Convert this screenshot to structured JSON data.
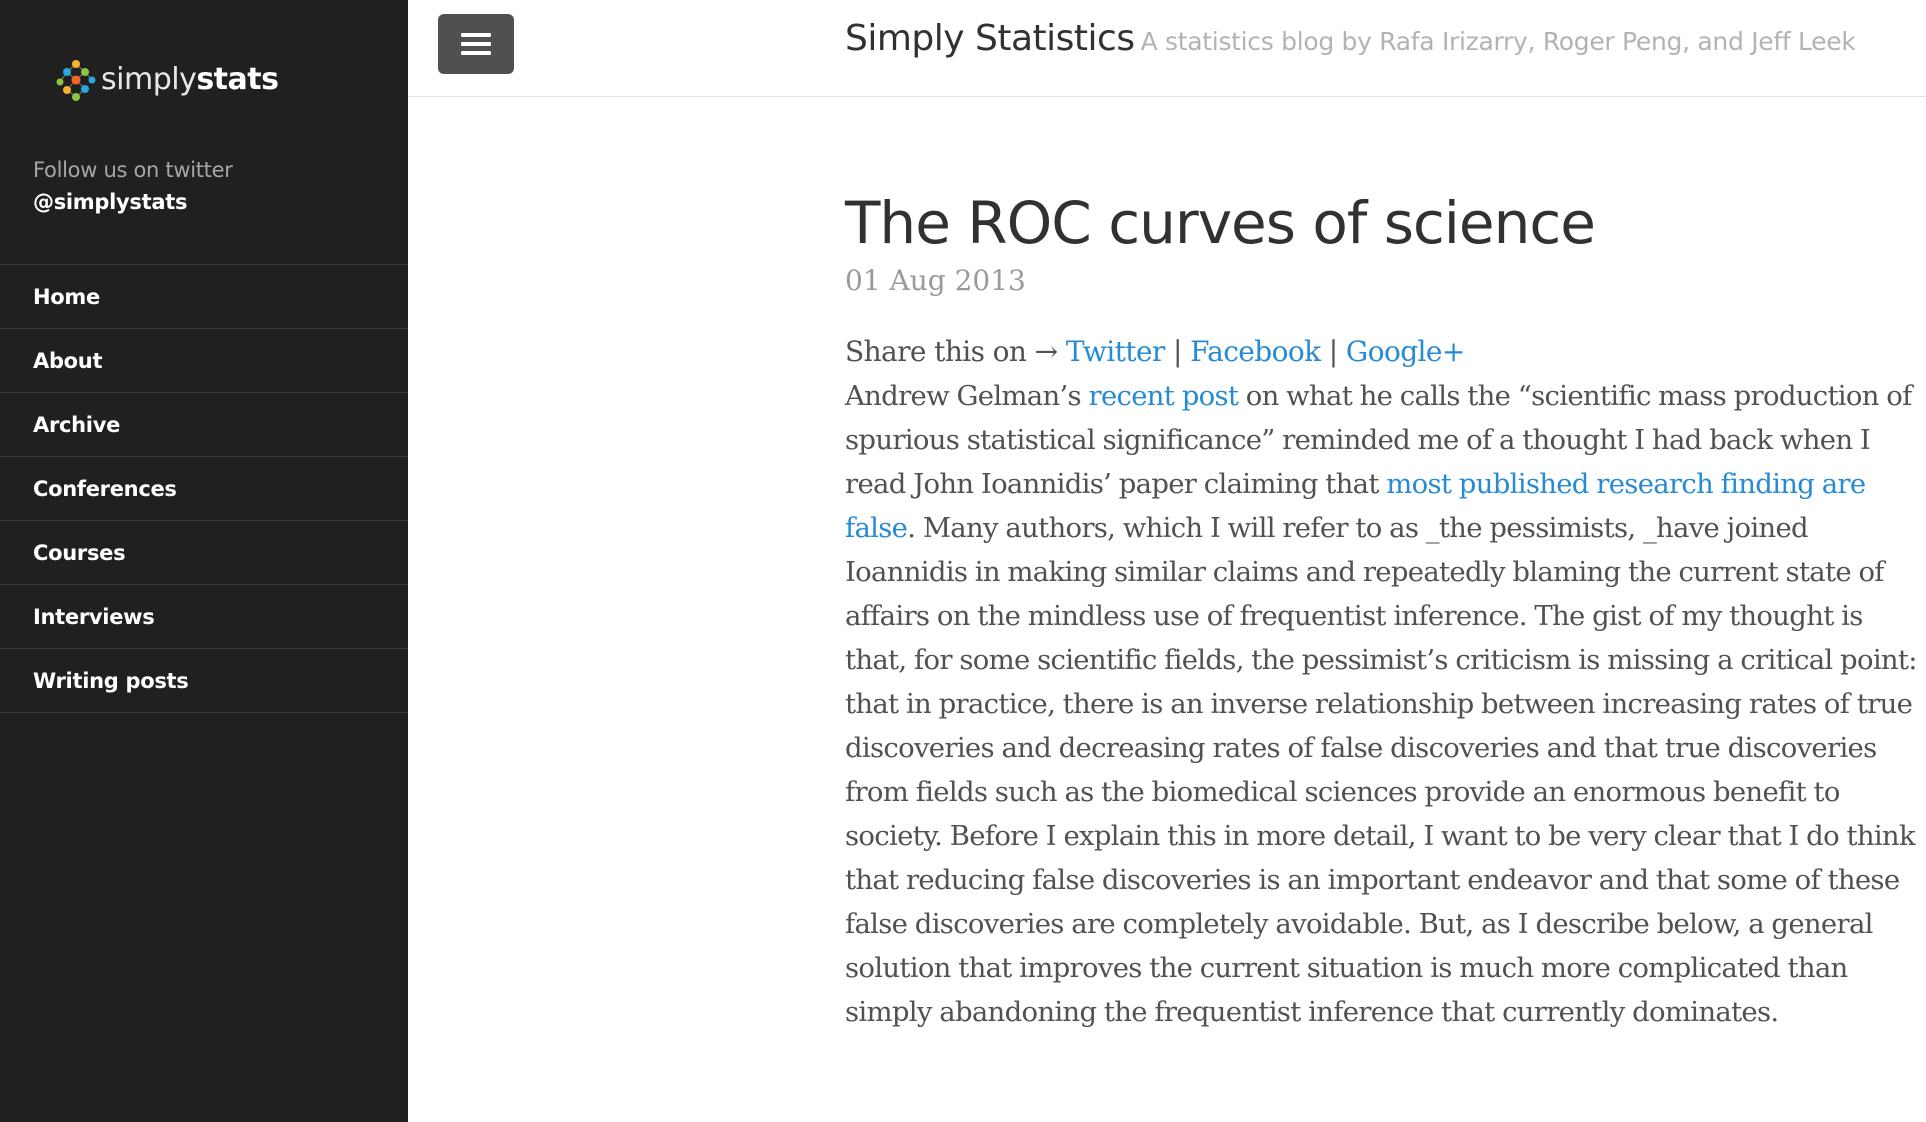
{
  "sidebar": {
    "logo": {
      "part1": "simply",
      "part2": "stats"
    },
    "follow_label": "Follow us on twitter",
    "twitter_handle": "@simplystats",
    "nav": [
      {
        "label": "Home"
      },
      {
        "label": "About"
      },
      {
        "label": "Archive"
      },
      {
        "label": "Conferences"
      },
      {
        "label": "Courses"
      },
      {
        "label": "Interviews"
      },
      {
        "label": "Writing posts"
      }
    ]
  },
  "header": {
    "site_name": "Simply Statistics",
    "tagline": "A statistics blog by Rafa Irizarry, Roger Peng, and Jeff Leek"
  },
  "post": {
    "title": "The ROC curves of science",
    "date": "01 Aug 2013",
    "share": {
      "prefix": "Share this on →",
      "twitter": "Twitter",
      "separator": "|",
      "facebook": "Facebook",
      "googleplus": "Google+"
    },
    "paragraph": {
      "t1": "Andrew Gelman’s ",
      "link1": "recent post",
      "t2": " on what he calls the “scientific mass production of spurious statistical significance” reminded me of a thought I had back when I read John Ioannidis’ paper claiming that ",
      "link2": "most published research finding are false",
      "t3": ". Many authors, which I will refer to as _the pessimists, _have joined Ioannidis in making similar claims and repeatedly blaming the current state of affairs on the mindless use of frequentist inference. The gist of my thought is that, for some scientific fields, the pessimist’s criticism is missing a critical point: that in practice, there is an inverse relationship between increasing rates of true discoveries and decreasing rates of false discoveries and that true discoveries from fields such as the biomedical sciences provide an enormous benefit to society. Before I explain this in more detail, I want to be very clear that I do think that reducing false discoveries is an important endeavor and that some of these false discoveries are completely avoidable. But, as I describe below, a general solution that improves the current situation is much more complicated than simply abandoning the frequentist inference that currently dominates."
    }
  },
  "colors": {
    "sidebar_bg": "#202020",
    "link": "#268bd2",
    "body_text": "#515151",
    "menu_button": "#505050"
  }
}
